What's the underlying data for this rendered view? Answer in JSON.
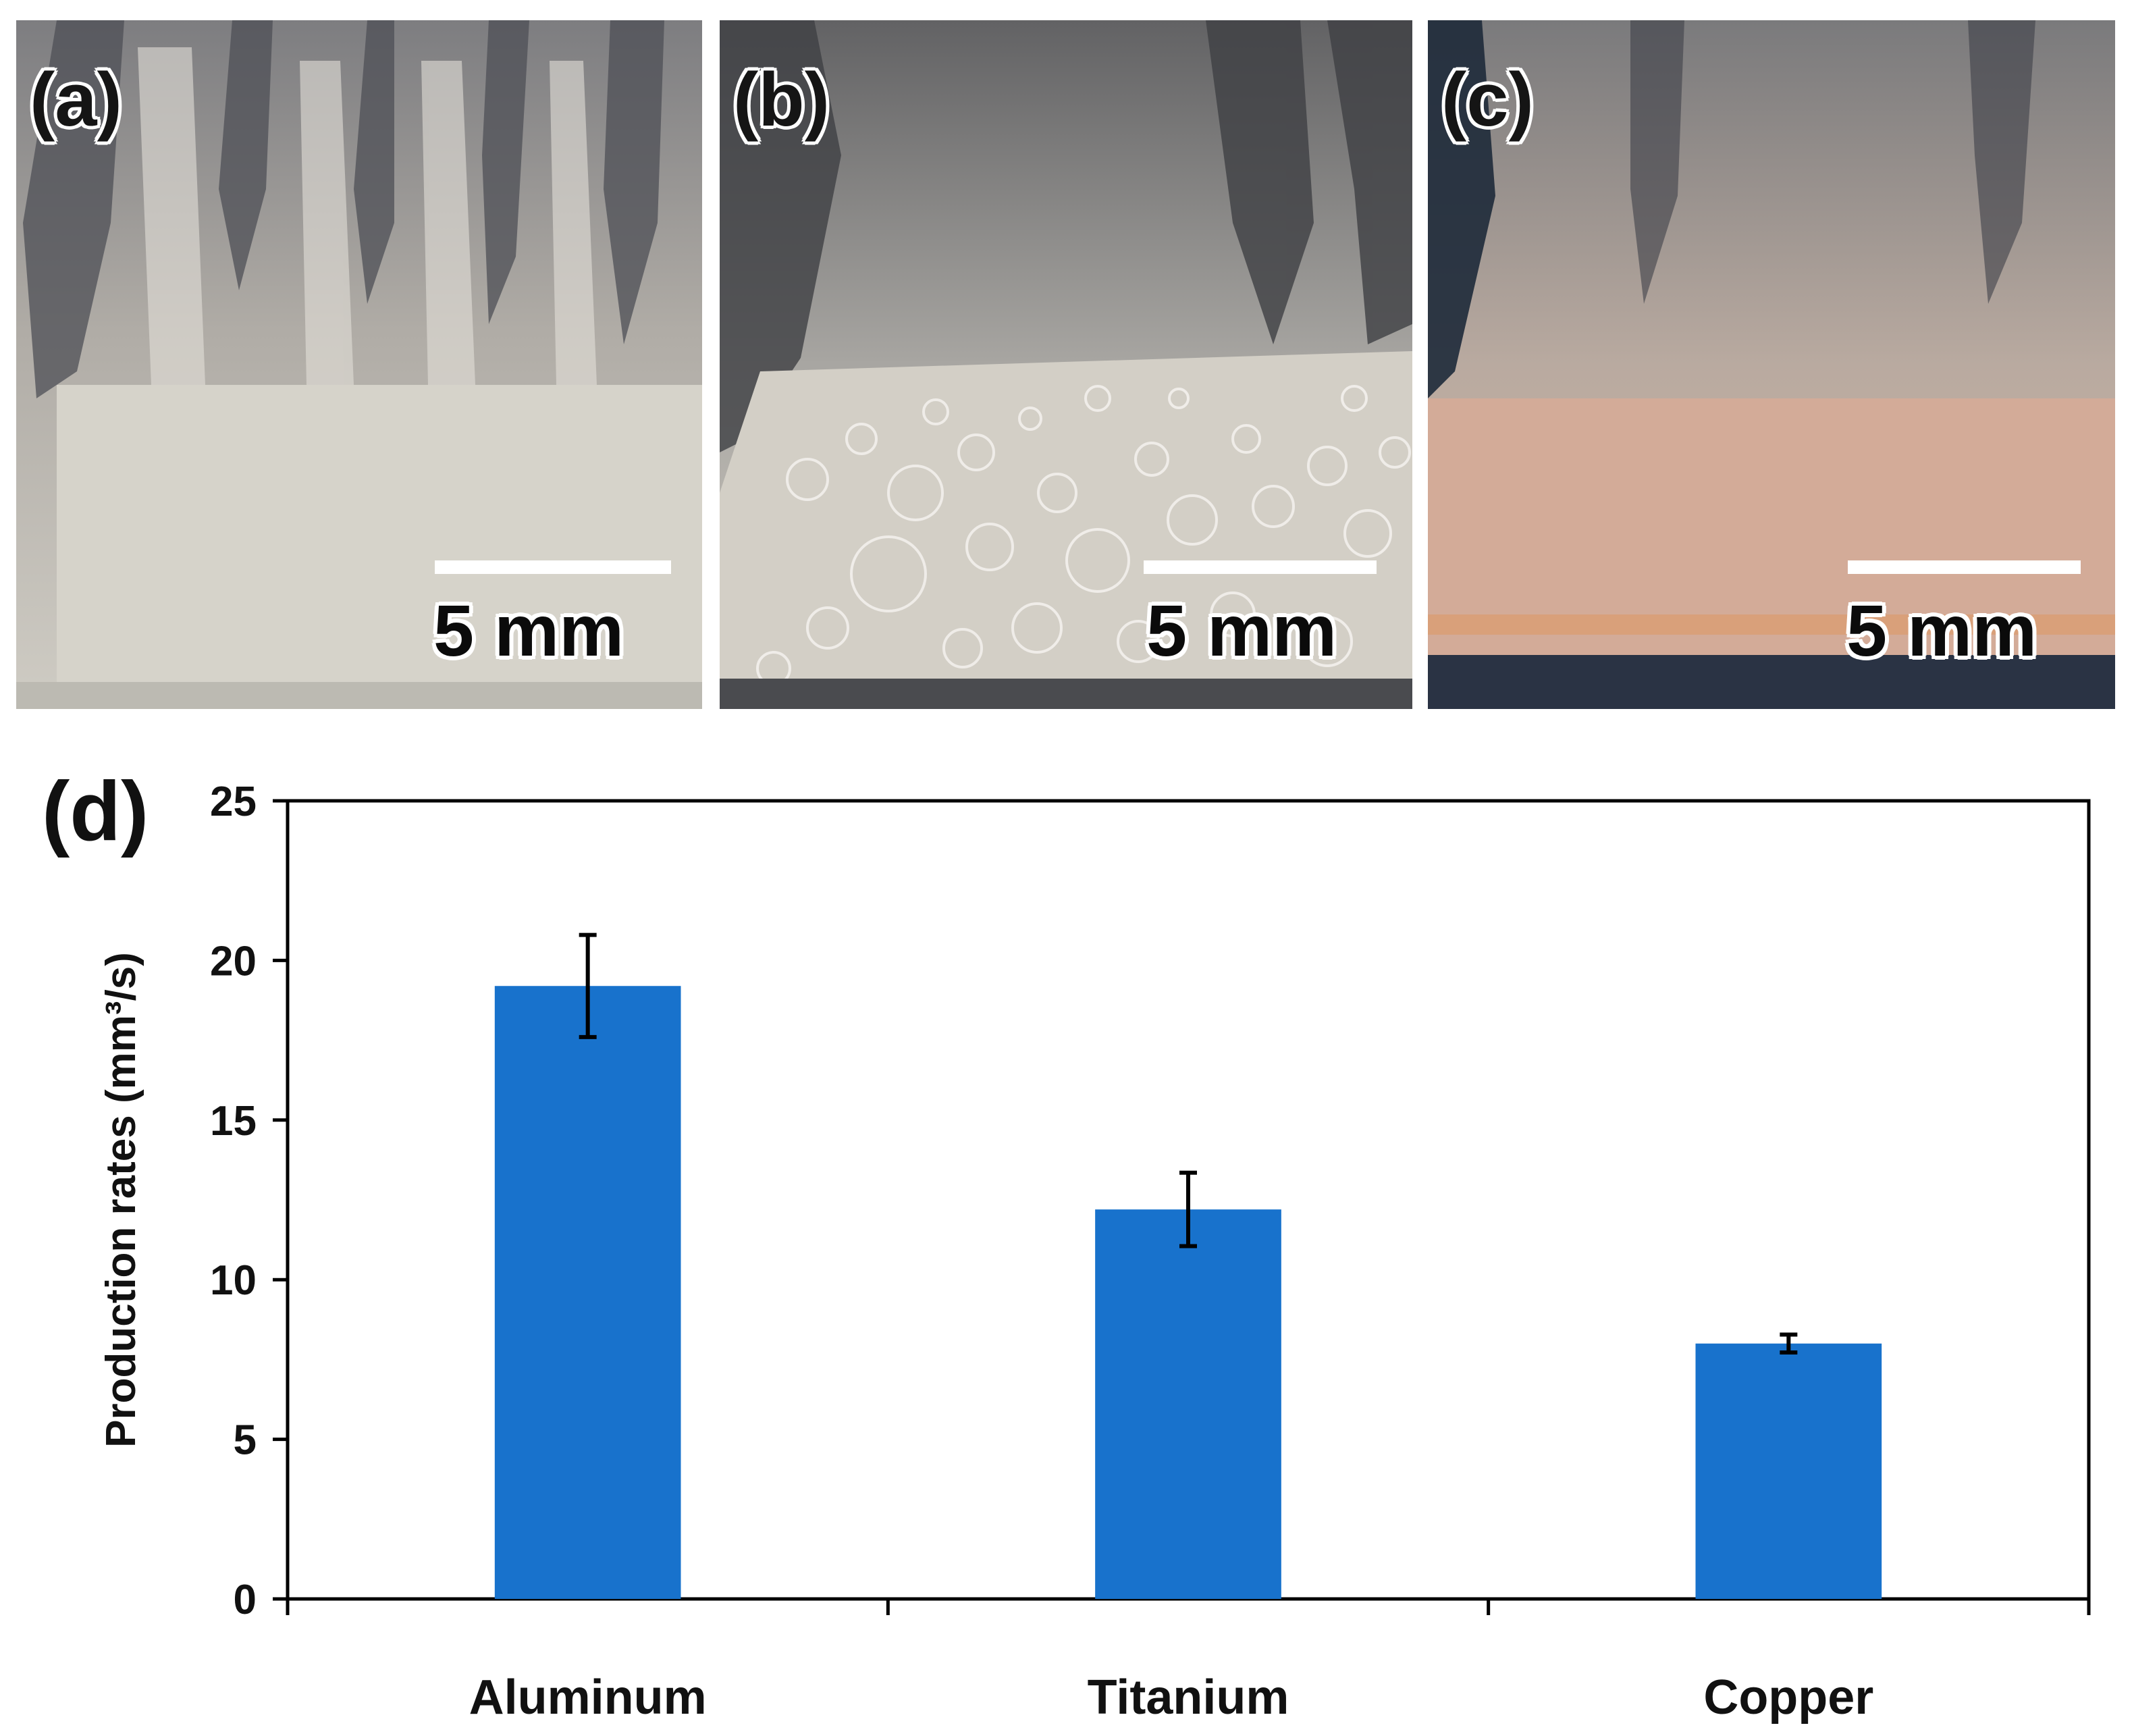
{
  "panels": [
    {
      "label": "(a)",
      "scale_label": "5 mm",
      "sample": "aluminum plate with cavitation plume"
    },
    {
      "label": "(b)",
      "scale_label": "5 mm",
      "sample": "titanium plate with bubbles"
    },
    {
      "label": "(c)",
      "scale_label": "5 mm",
      "sample": "copper plate"
    }
  ],
  "chart_panel_label": "(d)",
  "colors": {
    "bar": "#1872CC",
    "axis": "#000000",
    "error_bar": "#000000"
  },
  "chart_data": {
    "type": "bar",
    "categories": [
      "Aluminum",
      "Titanium",
      "Copper"
    ],
    "values": [
      19.2,
      12.2,
      8.0
    ],
    "errors": [
      1.6,
      1.15,
      0.28
    ],
    "title": "",
    "xlabel": "",
    "ylabel": "Production rates (mm³/s)",
    "ylim": [
      0,
      25
    ],
    "yticks": [
      0,
      5,
      10,
      15,
      20,
      25
    ],
    "grid": false,
    "legend": "none"
  }
}
